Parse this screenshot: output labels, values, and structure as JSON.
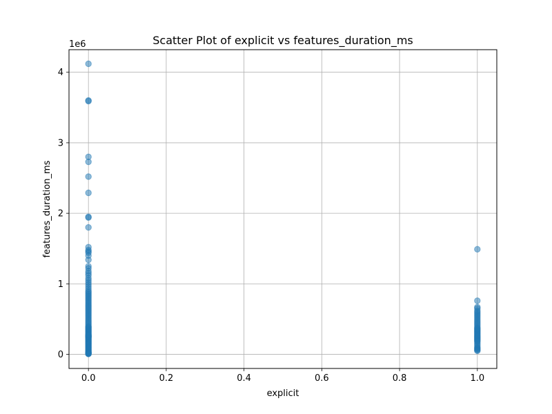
{
  "chart_data": {
    "type": "scatter",
    "title": "Scatter Plot of explicit vs features_duration_ms",
    "xlabel": "explicit",
    "ylabel": "features_duration_ms",
    "y_offset_text": "1e6",
    "xlim": [
      -0.05,
      1.05
    ],
    "ylim": [
      -200000,
      4320000
    ],
    "x_ticks": [
      0.0,
      0.2,
      0.4,
      0.6,
      0.8,
      1.0
    ],
    "x_tick_labels": [
      "0.0",
      "0.2",
      "0.4",
      "0.6",
      "0.8",
      "1.0"
    ],
    "y_ticks": [
      0,
      1000000,
      2000000,
      3000000,
      4000000
    ],
    "y_tick_labels": [
      "0",
      "1",
      "2",
      "3",
      "4"
    ],
    "grid": true,
    "marker_color": "#1f77b4",
    "marker_alpha": 0.5,
    "series": [
      {
        "x": [
          0,
          0,
          0,
          0,
          0,
          0,
          0,
          0,
          0,
          0,
          0,
          0,
          0,
          0,
          0,
          0,
          0,
          0,
          0,
          0,
          0,
          0,
          0,
          0,
          0,
          0,
          0,
          0,
          0,
          0,
          0,
          0,
          0,
          0,
          0,
          0,
          0,
          0,
          0,
          0,
          0,
          0,
          0,
          0,
          0,
          0,
          0,
          0,
          0,
          0,
          0,
          0,
          0,
          0,
          0,
          0,
          0,
          0,
          0,
          0,
          0,
          0,
          0,
          0,
          0,
          0,
          0,
          0,
          0,
          0,
          0,
          0,
          0,
          0,
          0,
          0,
          0,
          0,
          0,
          0,
          0,
          0,
          0,
          0,
          0,
          0,
          0,
          0,
          0,
          0,
          0,
          0,
          0,
          0,
          0,
          0,
          0,
          0,
          0,
          0,
          1,
          1,
          1,
          1,
          1,
          1,
          1,
          1,
          1,
          1,
          1,
          1,
          1,
          1,
          1,
          1,
          1,
          1,
          1,
          1,
          1,
          1,
          1,
          1,
          1,
          1,
          1,
          1,
          1,
          1,
          1,
          1,
          1,
          1,
          1,
          1,
          1,
          1,
          1,
          1,
          1,
          1,
          1,
          1,
          1,
          1
        ],
        "y": [
          4120000,
          3600000,
          3590000,
          2800000,
          2730000,
          2520000,
          2290000,
          1950000,
          1940000,
          1800000,
          1520000,
          1480000,
          1460000,
          1440000,
          1400000,
          1340000,
          1250000,
          1220000,
          1180000,
          1150000,
          1120000,
          1080000,
          1050000,
          1020000,
          990000,
          960000,
          930000,
          900000,
          880000,
          860000,
          840000,
          820000,
          800000,
          780000,
          760000,
          740000,
          720000,
          700000,
          680000,
          660000,
          640000,
          620000,
          600000,
          580000,
          560000,
          540000,
          520000,
          500000,
          480000,
          460000,
          440000,
          420000,
          400000,
          390000,
          380000,
          370000,
          360000,
          350000,
          340000,
          330000,
          320000,
          310000,
          300000,
          290000,
          280000,
          270000,
          260000,
          250000,
          240000,
          230000,
          220000,
          210000,
          200000,
          190000,
          180000,
          170000,
          160000,
          150000,
          140000,
          130000,
          120000,
          110000,
          100000,
          90000,
          80000,
          70000,
          60000,
          50000,
          40000,
          30000,
          25000,
          20000,
          15000,
          10000,
          8000,
          6000,
          245000,
          255000,
          265000,
          275000,
          1490000,
          760000,
          670000,
          650000,
          620000,
          600000,
          580000,
          560000,
          540000,
          520000,
          500000,
          480000,
          460000,
          440000,
          420000,
          400000,
          380000,
          360000,
          340000,
          320000,
          300000,
          280000,
          260000,
          240000,
          220000,
          200000,
          180000,
          160000,
          140000,
          120000,
          100000,
          90000,
          80000,
          70000,
          60000,
          50000,
          330000,
          310000,
          290000,
          270000,
          250000,
          230000,
          210000,
          190000,
          350000,
          370000
        ]
      }
    ]
  }
}
